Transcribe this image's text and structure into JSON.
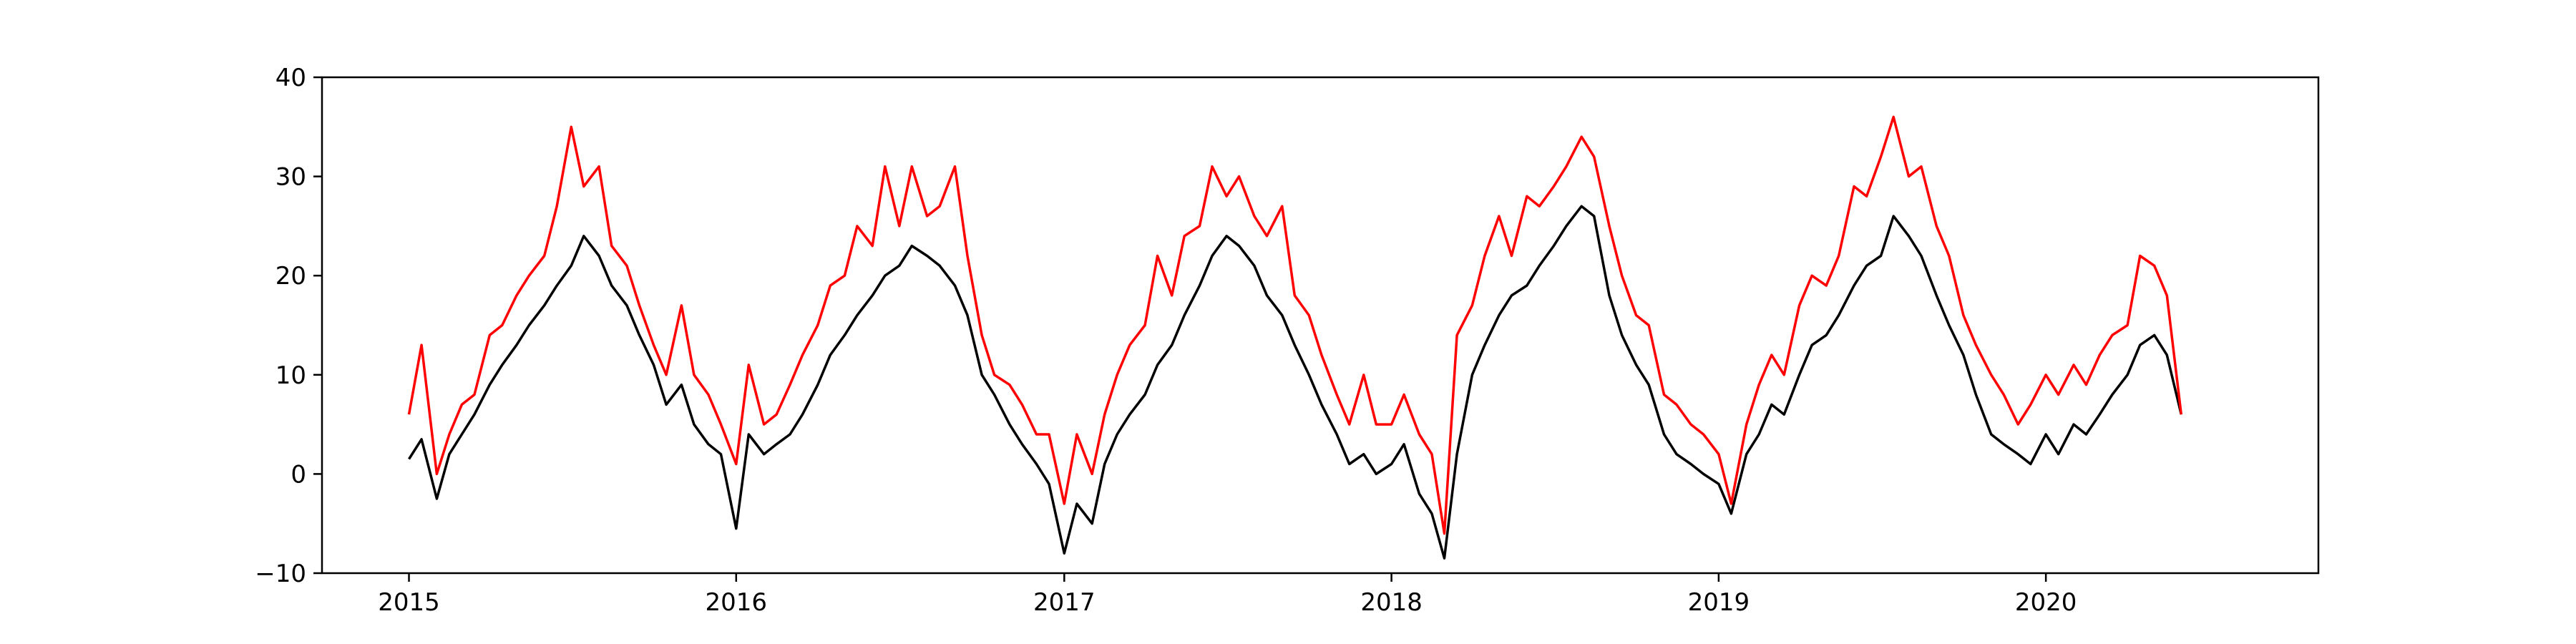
{
  "chart_data": {
    "type": "line",
    "title": "",
    "xlabel": "",
    "ylabel": "",
    "grid": false,
    "legend": "none",
    "x_range": [
      "2014-09-26",
      "2020-10-31"
    ],
    "ylim": [
      -10,
      40
    ],
    "x_ticks": [
      {
        "date": "2015-01-01",
        "label": "2015"
      },
      {
        "date": "2016-01-01",
        "label": "2016"
      },
      {
        "date": "2017-01-01",
        "label": "2017"
      },
      {
        "date": "2018-01-01",
        "label": "2018"
      },
      {
        "date": "2019-01-01",
        "label": "2019"
      },
      {
        "date": "2020-01-01",
        "label": "2020"
      }
    ],
    "y_ticks": [
      {
        "value": -10,
        "label": "−10"
      },
      {
        "value": 0,
        "label": "0"
      },
      {
        "value": 10,
        "label": "10"
      },
      {
        "value": 20,
        "label": "20"
      },
      {
        "value": 30,
        "label": "30"
      },
      {
        "value": 40,
        "label": "40"
      }
    ],
    "series": [
      {
        "color": "#000000",
        "points": [
          [
            "2015-01-01",
            1.5
          ],
          [
            "2015-01-15",
            3.5
          ],
          [
            "2015-02-01",
            -2.5
          ],
          [
            "2015-02-15",
            2
          ],
          [
            "2015-03-01",
            4
          ],
          [
            "2015-03-15",
            6
          ],
          [
            "2015-04-01",
            9
          ],
          [
            "2015-04-15",
            11
          ],
          [
            "2015-05-01",
            13
          ],
          [
            "2015-05-15",
            15
          ],
          [
            "2015-06-01",
            17
          ],
          [
            "2015-06-15",
            19
          ],
          [
            "2015-07-01",
            21
          ],
          [
            "2015-07-15",
            24
          ],
          [
            "2015-08-01",
            22
          ],
          [
            "2015-08-15",
            19
          ],
          [
            "2015-09-01",
            17
          ],
          [
            "2015-09-15",
            14
          ],
          [
            "2015-10-01",
            11
          ],
          [
            "2015-10-15",
            7
          ],
          [
            "2015-11-01",
            9
          ],
          [
            "2015-11-15",
            5
          ],
          [
            "2015-12-01",
            3
          ],
          [
            "2015-12-15",
            2
          ],
          [
            "2016-01-01",
            -5.5
          ],
          [
            "2016-01-15",
            4
          ],
          [
            "2016-02-01",
            2
          ],
          [
            "2016-02-15",
            3
          ],
          [
            "2016-03-01",
            4
          ],
          [
            "2016-03-15",
            6
          ],
          [
            "2016-04-01",
            9
          ],
          [
            "2016-04-15",
            12
          ],
          [
            "2016-05-01",
            14
          ],
          [
            "2016-05-15",
            16
          ],
          [
            "2016-06-01",
            18
          ],
          [
            "2016-06-15",
            20
          ],
          [
            "2016-07-01",
            21
          ],
          [
            "2016-07-15",
            23
          ],
          [
            "2016-08-01",
            22
          ],
          [
            "2016-08-15",
            21
          ],
          [
            "2016-09-01",
            19
          ],
          [
            "2016-09-15",
            16
          ],
          [
            "2016-10-01",
            10
          ],
          [
            "2016-10-15",
            8
          ],
          [
            "2016-11-01",
            5
          ],
          [
            "2016-11-15",
            3
          ],
          [
            "2016-12-01",
            1
          ],
          [
            "2016-12-15",
            -1
          ],
          [
            "2017-01-01",
            -8
          ],
          [
            "2017-01-15",
            -3
          ],
          [
            "2017-02-01",
            -5
          ],
          [
            "2017-02-15",
            1
          ],
          [
            "2017-03-01",
            4
          ],
          [
            "2017-03-15",
            6
          ],
          [
            "2017-04-01",
            8
          ],
          [
            "2017-04-15",
            11
          ],
          [
            "2017-05-01",
            13
          ],
          [
            "2017-05-15",
            16
          ],
          [
            "2017-06-01",
            19
          ],
          [
            "2017-06-15",
            22
          ],
          [
            "2017-07-01",
            24
          ],
          [
            "2017-07-15",
            23
          ],
          [
            "2017-08-01",
            21
          ],
          [
            "2017-08-15",
            18
          ],
          [
            "2017-09-01",
            16
          ],
          [
            "2017-09-15",
            13
          ],
          [
            "2017-10-01",
            10
          ],
          [
            "2017-10-15",
            7
          ],
          [
            "2017-11-01",
            4
          ],
          [
            "2017-11-15",
            1
          ],
          [
            "2017-12-01",
            2
          ],
          [
            "2017-12-15",
            0
          ],
          [
            "2018-01-01",
            1
          ],
          [
            "2018-01-15",
            3
          ],
          [
            "2018-02-01",
            -2
          ],
          [
            "2018-02-15",
            -4
          ],
          [
            "2018-03-01",
            -8.5
          ],
          [
            "2018-03-15",
            2
          ],
          [
            "2018-04-01",
            10
          ],
          [
            "2018-04-15",
            13
          ],
          [
            "2018-05-01",
            16
          ],
          [
            "2018-05-15",
            18
          ],
          [
            "2018-06-01",
            19
          ],
          [
            "2018-06-15",
            21
          ],
          [
            "2018-07-01",
            23
          ],
          [
            "2018-07-15",
            25
          ],
          [
            "2018-08-01",
            27
          ],
          [
            "2018-08-15",
            26
          ],
          [
            "2018-09-01",
            18
          ],
          [
            "2018-09-15",
            14
          ],
          [
            "2018-10-01",
            11
          ],
          [
            "2018-10-15",
            9
          ],
          [
            "2018-11-01",
            4
          ],
          [
            "2018-11-15",
            2
          ],
          [
            "2018-12-01",
            1
          ],
          [
            "2018-12-15",
            0
          ],
          [
            "2019-01-01",
            -1
          ],
          [
            "2019-01-15",
            -4
          ],
          [
            "2019-02-01",
            2
          ],
          [
            "2019-02-15",
            4
          ],
          [
            "2019-03-01",
            7
          ],
          [
            "2019-03-15",
            6
          ],
          [
            "2019-04-01",
            10
          ],
          [
            "2019-04-15",
            13
          ],
          [
            "2019-05-01",
            14
          ],
          [
            "2019-05-15",
            16
          ],
          [
            "2019-06-01",
            19
          ],
          [
            "2019-06-15",
            21
          ],
          [
            "2019-07-01",
            22
          ],
          [
            "2019-07-15",
            26
          ],
          [
            "2019-08-01",
            24
          ],
          [
            "2019-08-15",
            22
          ],
          [
            "2019-09-01",
            18
          ],
          [
            "2019-09-15",
            15
          ],
          [
            "2019-10-01",
            12
          ],
          [
            "2019-10-15",
            8
          ],
          [
            "2019-11-01",
            4
          ],
          [
            "2019-11-15",
            3
          ],
          [
            "2019-12-01",
            2
          ],
          [
            "2019-12-15",
            1
          ],
          [
            "2020-01-01",
            4
          ],
          [
            "2020-01-15",
            2
          ],
          [
            "2020-02-01",
            5
          ],
          [
            "2020-02-15",
            4
          ],
          [
            "2020-03-01",
            6
          ],
          [
            "2020-03-15",
            8
          ],
          [
            "2020-04-01",
            10
          ],
          [
            "2020-04-15",
            13
          ],
          [
            "2020-05-01",
            14
          ],
          [
            "2020-05-15",
            12
          ],
          [
            "2020-05-31",
            6
          ]
        ]
      },
      {
        "color": "#ff0000",
        "points": [
          [
            "2015-01-01",
            6
          ],
          [
            "2015-01-15",
            13
          ],
          [
            "2015-02-01",
            0
          ],
          [
            "2015-02-15",
            4
          ],
          [
            "2015-03-01",
            7
          ],
          [
            "2015-03-15",
            8
          ],
          [
            "2015-04-01",
            14
          ],
          [
            "2015-04-15",
            15
          ],
          [
            "2015-05-01",
            18
          ],
          [
            "2015-05-15",
            20
          ],
          [
            "2015-06-01",
            22
          ],
          [
            "2015-06-15",
            27
          ],
          [
            "2015-07-01",
            35
          ],
          [
            "2015-07-15",
            29
          ],
          [
            "2015-08-01",
            31
          ],
          [
            "2015-08-15",
            23
          ],
          [
            "2015-09-01",
            21
          ],
          [
            "2015-09-15",
            17
          ],
          [
            "2015-10-01",
            13
          ],
          [
            "2015-10-15",
            10
          ],
          [
            "2015-11-01",
            17
          ],
          [
            "2015-11-15",
            10
          ],
          [
            "2015-12-01",
            8
          ],
          [
            "2015-12-15",
            5
          ],
          [
            "2016-01-01",
            1
          ],
          [
            "2016-01-15",
            11
          ],
          [
            "2016-02-01",
            5
          ],
          [
            "2016-02-15",
            6
          ],
          [
            "2016-03-01",
            9
          ],
          [
            "2016-03-15",
            12
          ],
          [
            "2016-04-01",
            15
          ],
          [
            "2016-04-15",
            19
          ],
          [
            "2016-05-01",
            20
          ],
          [
            "2016-05-15",
            25
          ],
          [
            "2016-06-01",
            23
          ],
          [
            "2016-06-15",
            31
          ],
          [
            "2016-07-01",
            25
          ],
          [
            "2016-07-15",
            31
          ],
          [
            "2016-08-01",
            26
          ],
          [
            "2016-08-15",
            27
          ],
          [
            "2016-09-01",
            31
          ],
          [
            "2016-09-15",
            22
          ],
          [
            "2016-10-01",
            14
          ],
          [
            "2016-10-15",
            10
          ],
          [
            "2016-11-01",
            9
          ],
          [
            "2016-11-15",
            7
          ],
          [
            "2016-12-01",
            4
          ],
          [
            "2016-12-15",
            4
          ],
          [
            "2017-01-01",
            -3
          ],
          [
            "2017-01-15",
            4
          ],
          [
            "2017-02-01",
            0
          ],
          [
            "2017-02-15",
            6
          ],
          [
            "2017-03-01",
            10
          ],
          [
            "2017-03-15",
            13
          ],
          [
            "2017-04-01",
            15
          ],
          [
            "2017-04-15",
            22
          ],
          [
            "2017-05-01",
            18
          ],
          [
            "2017-05-15",
            24
          ],
          [
            "2017-06-01",
            25
          ],
          [
            "2017-06-15",
            31
          ],
          [
            "2017-07-01",
            28
          ],
          [
            "2017-07-15",
            30
          ],
          [
            "2017-08-01",
            26
          ],
          [
            "2017-08-15",
            24
          ],
          [
            "2017-09-01",
            27
          ],
          [
            "2017-09-15",
            18
          ],
          [
            "2017-10-01",
            16
          ],
          [
            "2017-10-15",
            12
          ],
          [
            "2017-11-01",
            8
          ],
          [
            "2017-11-15",
            5
          ],
          [
            "2017-12-01",
            10
          ],
          [
            "2017-12-15",
            5
          ],
          [
            "2018-01-01",
            5
          ],
          [
            "2018-01-15",
            8
          ],
          [
            "2018-02-01",
            4
          ],
          [
            "2018-02-15",
            2
          ],
          [
            "2018-03-01",
            -6
          ],
          [
            "2018-03-15",
            14
          ],
          [
            "2018-04-01",
            17
          ],
          [
            "2018-04-15",
            22
          ],
          [
            "2018-05-01",
            26
          ],
          [
            "2018-05-15",
            22
          ],
          [
            "2018-06-01",
            28
          ],
          [
            "2018-06-15",
            27
          ],
          [
            "2018-07-01",
            29
          ],
          [
            "2018-07-15",
            31
          ],
          [
            "2018-08-01",
            34
          ],
          [
            "2018-08-15",
            32
          ],
          [
            "2018-09-01",
            25
          ],
          [
            "2018-09-15",
            20
          ],
          [
            "2018-10-01",
            16
          ],
          [
            "2018-10-15",
            15
          ],
          [
            "2018-11-01",
            8
          ],
          [
            "2018-11-15",
            7
          ],
          [
            "2018-12-01",
            5
          ],
          [
            "2018-12-15",
            4
          ],
          [
            "2019-01-01",
            2
          ],
          [
            "2019-01-15",
            -3
          ],
          [
            "2019-02-01",
            5
          ],
          [
            "2019-02-15",
            9
          ],
          [
            "2019-03-01",
            12
          ],
          [
            "2019-03-15",
            10
          ],
          [
            "2019-04-01",
            17
          ],
          [
            "2019-04-15",
            20
          ],
          [
            "2019-05-01",
            19
          ],
          [
            "2019-05-15",
            22
          ],
          [
            "2019-06-01",
            29
          ],
          [
            "2019-06-15",
            28
          ],
          [
            "2019-07-01",
            32
          ],
          [
            "2019-07-15",
            36
          ],
          [
            "2019-08-01",
            30
          ],
          [
            "2019-08-15",
            31
          ],
          [
            "2019-09-01",
            25
          ],
          [
            "2019-09-15",
            22
          ],
          [
            "2019-10-01",
            16
          ],
          [
            "2019-10-15",
            13
          ],
          [
            "2019-11-01",
            10
          ],
          [
            "2019-11-15",
            8
          ],
          [
            "2019-12-01",
            5
          ],
          [
            "2019-12-15",
            7
          ],
          [
            "2020-01-01",
            10
          ],
          [
            "2020-01-15",
            8
          ],
          [
            "2020-02-01",
            11
          ],
          [
            "2020-02-15",
            9
          ],
          [
            "2020-03-01",
            12
          ],
          [
            "2020-03-15",
            14
          ],
          [
            "2020-04-01",
            15
          ],
          [
            "2020-04-15",
            22
          ],
          [
            "2020-05-01",
            21
          ],
          [
            "2020-05-15",
            18
          ],
          [
            "2020-05-31",
            6
          ]
        ]
      }
    ]
  }
}
